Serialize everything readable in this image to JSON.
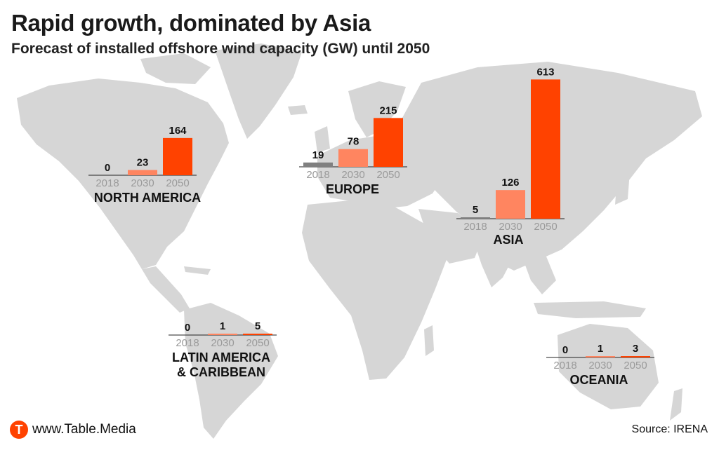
{
  "header": {
    "title": "Rapid growth, dominated by Asia",
    "subtitle": "Forecast of installed offshore wind capacity (GW) until 2050"
  },
  "footer": {
    "site": "www.Table.Media",
    "logo_letter": "T",
    "source": "Source: IRENA"
  },
  "colors": {
    "bar_2018": "#808080",
    "bar_2030": "#ff8560",
    "bar_2050": "#ff4200",
    "map_land": "#d6d6d6",
    "logo": "#ff4200"
  },
  "chart_data": {
    "type": "bar",
    "title": "Rapid growth, dominated by Asia",
    "subtitle": "Forecast of installed offshore wind capacity (GW) until 2050",
    "unit": "GW",
    "categories": [
      "2018",
      "2030",
      "2050"
    ],
    "regions": [
      {
        "name": "NORTH AMERICA",
        "values": [
          0,
          23,
          164
        ]
      },
      {
        "name": "EUROPE",
        "values": [
          19,
          78,
          215
        ]
      },
      {
        "name": "ASIA",
        "values": [
          5,
          126,
          613
        ]
      },
      {
        "name": "LATIN AMERICA\n& CARIBBEAN",
        "values": [
          0,
          1,
          5
        ]
      },
      {
        "name": "OCEANIA",
        "values": [
          0,
          1,
          3
        ]
      }
    ]
  }
}
